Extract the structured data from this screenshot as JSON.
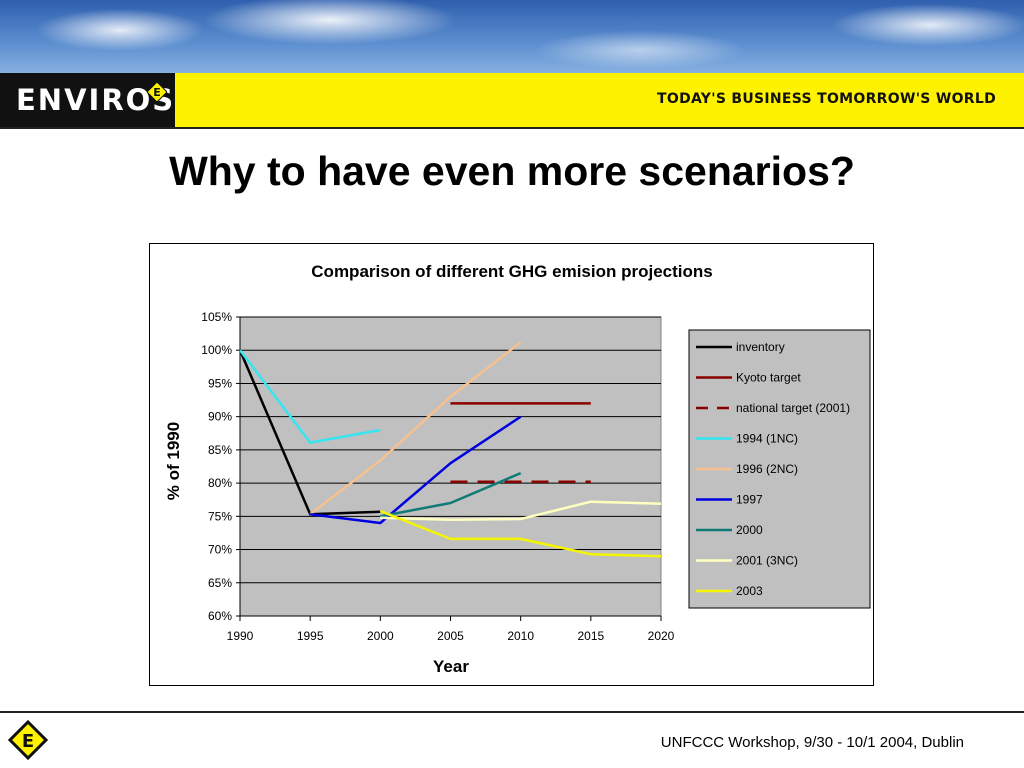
{
  "header": {
    "logo_text": "ENVIROS",
    "logo_badge_letter": "E",
    "tagline": "TODAY'S BUSINESS TOMORROW'S WORLD"
  },
  "slide": {
    "title": "Why to have even more scenarios?"
  },
  "footer": {
    "badge_letter": "E",
    "text": "UNFCCC Workshop, 9/30 - 10/1 2004, Dublin"
  },
  "chart_data": {
    "type": "line",
    "title": "Comparison of different GHG emision projections",
    "xlabel": "Year",
    "ylabel": "% of 1990",
    "xlim": [
      1990,
      2020
    ],
    "ylim": [
      60,
      105
    ],
    "x_ticks": [
      "1990",
      "1995",
      "2000",
      "2005",
      "2010",
      "2015",
      "2020"
    ],
    "y_ticks": [
      "60%",
      "65%",
      "70%",
      "75%",
      "80%",
      "85%",
      "90%",
      "95%",
      "100%",
      "105%"
    ],
    "grid": "horizontal",
    "plot_background": "#c0c0c0",
    "legend_position": "right",
    "series": [
      {
        "name": "inventory",
        "color": "#000000",
        "dash": false,
        "points": [
          [
            1990,
            100
          ],
          [
            1995,
            75.3
          ],
          [
            2000,
            75.7
          ]
        ]
      },
      {
        "name": "Kyoto target",
        "color": "#8b0000",
        "dash": false,
        "points": [
          [
            2005,
            92
          ],
          [
            2015,
            92
          ]
        ]
      },
      {
        "name": "national target (2001)",
        "color": "#8b0000",
        "dash": true,
        "points": [
          [
            2005,
            80.2
          ],
          [
            2015,
            80.2
          ]
        ]
      },
      {
        "name": "1994 (1NC)",
        "color": "#33e6f0",
        "dash": false,
        "points": [
          [
            1990,
            100
          ],
          [
            1995,
            86.1
          ],
          [
            2000,
            88
          ]
        ]
      },
      {
        "name": "1996 (2NC)",
        "color": "#f7c08f",
        "dash": false,
        "points": [
          [
            1995,
            75.3
          ],
          [
            2000,
            83.4
          ],
          [
            2005,
            93
          ],
          [
            2010,
            101.2
          ]
        ]
      },
      {
        "name": "1997",
        "color": "#0000e0",
        "dash": false,
        "points": [
          [
            1995,
            75.3
          ],
          [
            2000,
            74
          ],
          [
            2005,
            83
          ],
          [
            2010,
            90
          ]
        ]
      },
      {
        "name": "2000",
        "color": "#127a76",
        "dash": false,
        "points": [
          [
            2000,
            75
          ],
          [
            2005,
            77
          ],
          [
            2010,
            81.5
          ]
        ]
      },
      {
        "name": "2001 (3NC)",
        "color": "#ffffc0",
        "dash": false,
        "points": [
          [
            2000,
            74.8
          ],
          [
            2005,
            74.5
          ],
          [
            2010,
            74.6
          ],
          [
            2015,
            77.2
          ],
          [
            2020,
            76.9
          ]
        ]
      },
      {
        "name": "2003",
        "color": "#f5f500",
        "dash": false,
        "points": [
          [
            2000,
            75.8
          ],
          [
            2005,
            71.6
          ],
          [
            2010,
            71.6
          ],
          [
            2015,
            69.3
          ],
          [
            2020,
            69
          ]
        ]
      }
    ]
  }
}
